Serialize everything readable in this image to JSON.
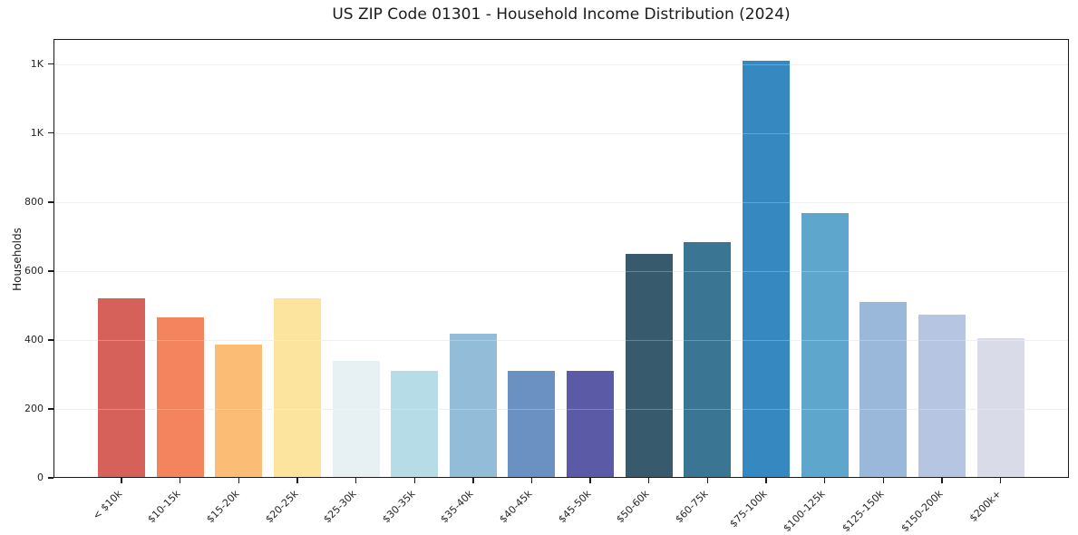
{
  "chart_data": {
    "type": "bar",
    "title": "US ZIP Code 01301 - Household Income Distribution (2024)",
    "xlabel": "",
    "ylabel": "Households",
    "categories": [
      "< $10k",
      "$10-15k",
      "$15-20k",
      "$20-25k",
      "$25-30k",
      "$30-35k",
      "$35-40k",
      "$40-45k",
      "$45-50k",
      "$50-60k",
      "$60-75k",
      "$75-100k",
      "$100-125k",
      "$125-150k",
      "$150-200k",
      "$200k+"
    ],
    "values": [
      522,
      465,
      387,
      520,
      340,
      311,
      419,
      310,
      310,
      649,
      684,
      1210,
      768,
      511,
      474,
      405
    ],
    "bar_colors": [
      "#d6605a",
      "#f3845e",
      "#fbbc75",
      "#fde49e",
      "#e7f0f2",
      "#b6dce8",
      "#92bcd8",
      "#6b91c2",
      "#5a5aa6",
      "#375a6d",
      "#3a7593",
      "#3589c0",
      "#5ea6cb",
      "#9ab9da",
      "#b6c6e2",
      "#dadbe9"
    ],
    "y_ticks": [
      {
        "value": 0,
        "label": "0"
      },
      {
        "value": 200,
        "label": "200"
      },
      {
        "value": 400,
        "label": "400"
      },
      {
        "value": 600,
        "label": "600"
      },
      {
        "value": 800,
        "label": "800"
      },
      {
        "value": 1000,
        "label": "1K"
      },
      {
        "value": 1200,
        "label": "1K"
      }
    ],
    "ylim": [
      0,
      1273
    ],
    "grid": "horizontal",
    "legend": "none",
    "grid_color": "#ebebeb",
    "axis_color": "#1c1c1c",
    "text_color": "#262626",
    "background_color": "#ffffff"
  }
}
